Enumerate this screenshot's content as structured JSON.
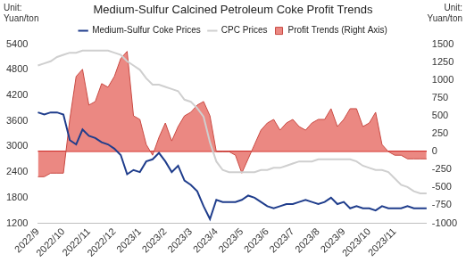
{
  "chart_data": {
    "type": "line",
    "title": "Medium-Sulfur Calcined Petroleum Coke Profit Trends",
    "ylabel": "Unit: Yuan/ton",
    "y2label": "Unit: Yuan/ton",
    "categories": [
      "2022/9",
      null,
      null,
      null,
      "2022/10",
      null,
      null,
      null,
      "2022/11",
      null,
      null,
      null,
      "2022/12",
      null,
      null,
      null,
      "2023/1",
      null,
      null,
      null,
      "2023/2",
      null,
      null,
      null,
      "2023/3",
      null,
      null,
      null,
      "2023/4",
      null,
      null,
      null,
      "2023/5",
      null,
      null,
      null,
      "2023/6",
      null,
      null,
      null,
      "2023/7",
      null,
      null,
      null,
      "2023/8",
      null,
      null,
      null,
      "2023/9",
      null,
      null,
      null,
      "2023/10",
      null,
      null,
      null,
      "2023/11",
      null,
      null,
      null,
      null,
      null
    ],
    "series": [
      {
        "name": "Profit Trends (Right Axis)",
        "type": "area",
        "color": "#e8736c",
        "axis": "y2",
        "values": [
          -350,
          -350,
          -300,
          -300,
          -300,
          450,
          1050,
          1150,
          650,
          700,
          950,
          900,
          1050,
          1300,
          1400,
          500,
          450,
          100,
          -50,
          200,
          400,
          150,
          350,
          500,
          550,
          650,
          700,
          500,
          0,
          0,
          0,
          -50,
          -300,
          -100,
          100,
          300,
          400,
          450,
          300,
          400,
          450,
          350,
          300,
          400,
          450,
          450,
          600,
          350,
          450,
          600,
          600,
          350,
          400,
          550,
          100,
          0,
          -50,
          -50,
          -100,
          -100,
          -100,
          -100
        ]
      },
      {
        "name": "Medium-Sulfur Coke Prices",
        "type": "line",
        "color": "#1f3d8c",
        "values": [
          3800,
          3750,
          3800,
          3800,
          3750,
          3150,
          3050,
          3400,
          3250,
          3200,
          3100,
          3050,
          2950,
          2800,
          2350,
          2450,
          2400,
          2650,
          2700,
          2850,
          2650,
          2400,
          2550,
          2200,
          2100,
          1950,
          1600,
          1300,
          1750,
          1700,
          1700,
          1700,
          1750,
          1850,
          1800,
          1700,
          1600,
          1550,
          1600,
          1650,
          1650,
          1700,
          1750,
          1700,
          1650,
          1700,
          1800,
          1650,
          1700,
          1550,
          1600,
          1550,
          1550,
          1500,
          1600,
          1550,
          1550,
          1550,
          1600,
          1550,
          1550,
          1550
        ]
      },
      {
        "name": "CPC Prices",
        "type": "line",
        "color": "#cfcfcf",
        "values": [
          4900,
          4950,
          5000,
          5100,
          5150,
          5200,
          5200,
          5250,
          5250,
          5250,
          5250,
          5250,
          5200,
          5150,
          5000,
          4900,
          4800,
          4600,
          4450,
          4450,
          4400,
          4350,
          4300,
          4100,
          4050,
          3900,
          3700,
          3100,
          2650,
          2450,
          2400,
          2400,
          2400,
          2400,
          2400,
          2450,
          2450,
          2500,
          2500,
          2550,
          2600,
          2650,
          2650,
          2650,
          2700,
          2700,
          2700,
          2700,
          2700,
          2700,
          2650,
          2550,
          2500,
          2450,
          2450,
          2400,
          2250,
          2100,
          2050,
          1950,
          1900,
          1900
        ]
      }
    ],
    "ylim": [
      1200,
      5400
    ],
    "yticks": [
      1200,
      1800,
      2400,
      3000,
      3600,
      4200,
      4800,
      5400
    ],
    "y2lim": [
      -1000,
      1500
    ],
    "y2ticks": [
      -1000,
      -750,
      -500,
      -250,
      0,
      250,
      500,
      750,
      1000,
      1250,
      1500
    ],
    "grid": false,
    "legend": "top"
  }
}
